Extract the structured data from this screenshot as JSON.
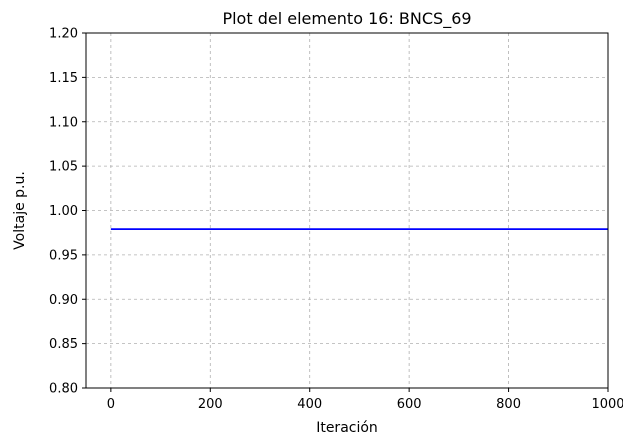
{
  "chart_data": {
    "type": "line",
    "title": "Plot del elemento 16: BNCS_69",
    "xlabel": "Iteración",
    "ylabel": "Voltaje p.u.",
    "xlim": [
      -50,
      1000
    ],
    "ylim": [
      0.8,
      1.2
    ],
    "x_ticks": [
      0,
      200,
      400,
      600,
      800,
      1000
    ],
    "x_tick_labels": [
      "0",
      "200",
      "400",
      "600",
      "800",
      "1000"
    ],
    "y_ticks": [
      0.8,
      0.85,
      0.9,
      0.95,
      1.0,
      1.05,
      1.1,
      1.15,
      1.2
    ],
    "y_tick_labels": [
      "0.80",
      "0.85",
      "0.90",
      "0.95",
      "1.00",
      "1.05",
      "1.10",
      "1.15",
      "1.20"
    ],
    "grid": true,
    "series": [
      {
        "color": "#0000ff",
        "x": [
          0,
          1000
        ],
        "y": [
          0.979,
          0.979
        ]
      }
    ]
  }
}
